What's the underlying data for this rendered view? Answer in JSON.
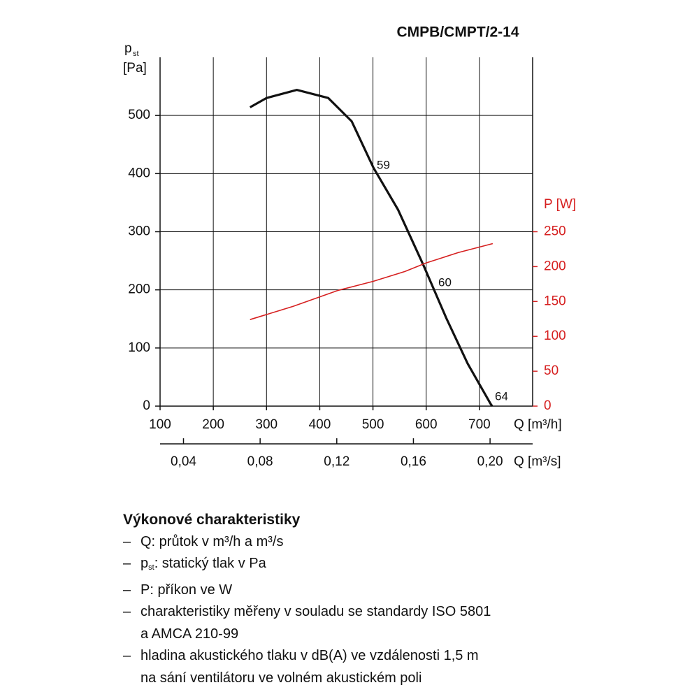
{
  "chart_data": {
    "type": "line",
    "title": "CMPB/CMPT/2-14",
    "ylabel": "p",
    "ylabel_sub": "st",
    "yunit": "[Pa]",
    "y2label": "P [W]",
    "xlabel": "Q [m³/h]",
    "x2label": "Q [m³/s]",
    "xlim": [
      100,
      800
    ],
    "xticks": [
      100,
      200,
      300,
      400,
      500,
      600,
      700
    ],
    "x2lim": [
      0.02778,
      0.22222
    ],
    "x2ticks": [
      {
        "value": 0.04,
        "label": "0,04"
      },
      {
        "value": 0.08,
        "label": "0,08"
      },
      {
        "value": 0.12,
        "label": "0,12"
      },
      {
        "value": 0.16,
        "label": "0,16"
      },
      {
        "value": 0.2,
        "label": "0,20"
      }
    ],
    "ylim": [
      0,
      600
    ],
    "yticks": [
      0,
      100,
      200,
      300,
      400,
      500
    ],
    "y2lim": [
      0,
      500
    ],
    "y2ticks": [
      0,
      50,
      100,
      150,
      200,
      250
    ],
    "grid": true,
    "series": [
      {
        "color": "#111111",
        "x": [
          269,
          300,
          357,
          416,
          460,
          501,
          547,
          595,
          638,
          678,
          721,
          724
        ],
        "values": [
          514,
          530,
          544,
          530,
          490,
          410,
          338,
          242,
          151,
          73,
          4,
          0
        ]
      },
      {
        "color": "#d62020",
        "axis": "y2",
        "x": [
          269,
          350,
          435,
          501,
          560,
          599,
          660,
          725
        ],
        "values": [
          124,
          143,
          166,
          179,
          193,
          205,
          220,
          233
        ]
      }
    ],
    "annotations": [
      "59",
      "60",
      "64"
    ]
  },
  "notes": {
    "heading": "Výkonové charakteristiky",
    "dash": "–",
    "items": [
      {
        "lines": [
          "Q: průtok v m³/h a m³/s"
        ]
      },
      {
        "main": "p",
        "sub": "st",
        "lines": [
          ": statický tlak v Pa"
        ]
      },
      {
        "lines": [
          "P: příkon ve W"
        ]
      },
      {
        "lines": [
          "charakteristiky měřeny v souladu se standardy ISO 5801",
          "a AMCA 210-99"
        ]
      },
      {
        "lines": [
          "hladina akustického tlaku v dB(A) ve vzdálenosti 1,5 m",
          "na sání ventilátoru ve volném akustickém poli"
        ]
      }
    ]
  }
}
